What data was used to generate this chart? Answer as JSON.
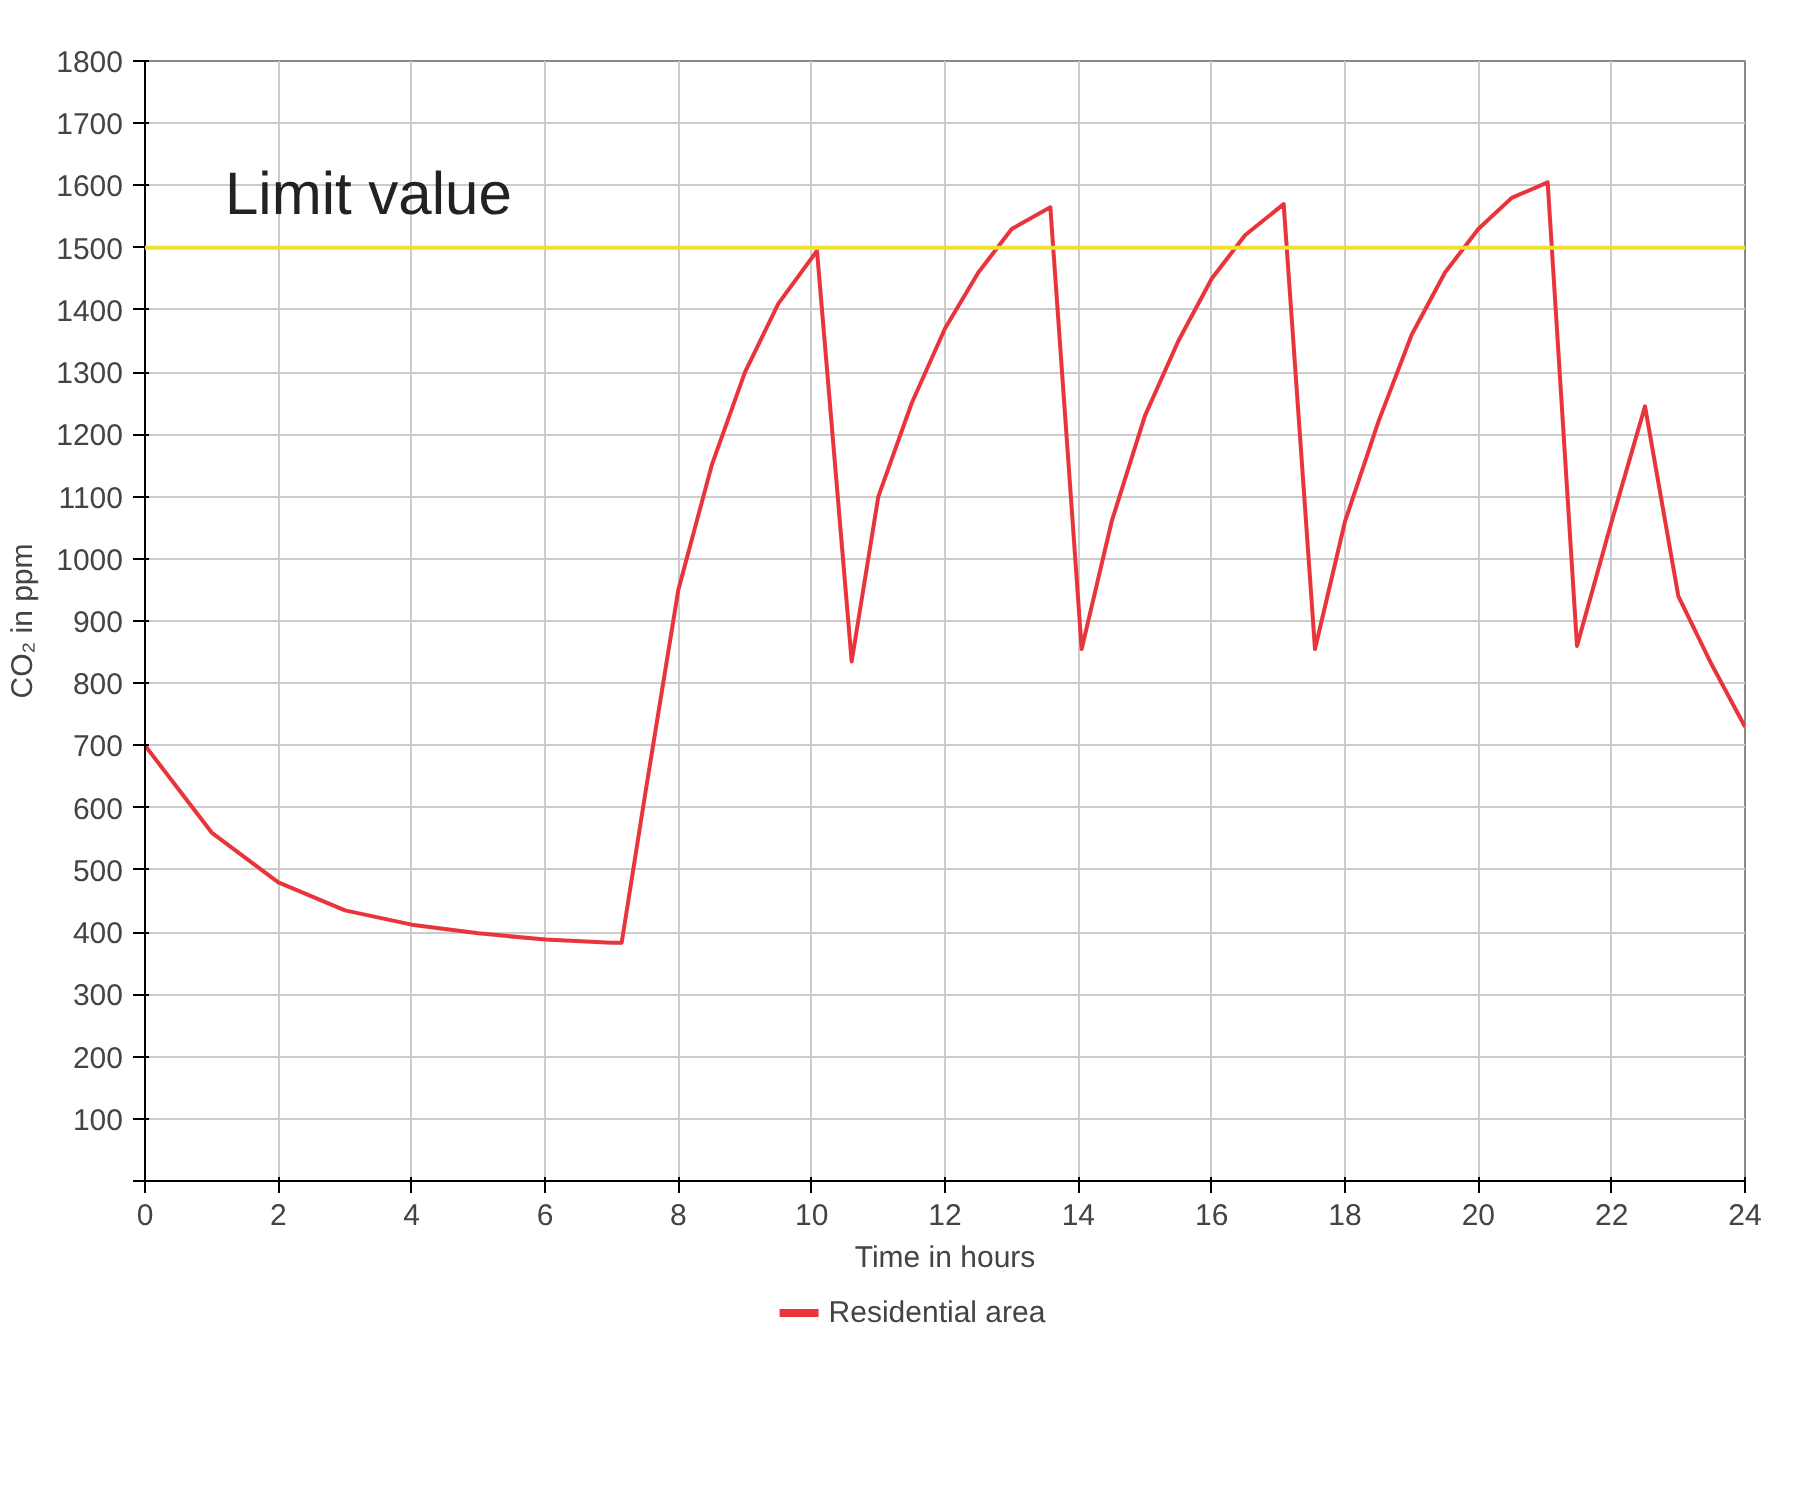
{
  "chart_data": {
    "type": "line",
    "xlabel": "Time in hours",
    "ylabel": "CO₂ in ppm",
    "x": [
      0,
      0.5,
      1,
      2,
      3,
      4,
      5,
      6,
      7,
      7.15,
      7.5,
      8,
      8.5,
      9,
      9.5,
      10.08,
      10.6,
      11,
      11.5,
      12,
      12.5,
      13,
      13.58,
      14.05,
      14.5,
      15,
      15.5,
      16,
      16.5,
      17.08,
      17.55,
      18,
      18.5,
      19,
      19.5,
      20,
      20.5,
      21.04,
      21.48,
      22,
      22.5,
      23,
      23.5,
      24
    ],
    "series": [
      {
        "name": "Residential area",
        "color": "#e8343a",
        "values": [
          700,
          630,
          560,
          480,
          435,
          412,
          398,
          388,
          383,
          383,
          620,
          950,
          1150,
          1300,
          1410,
          1495,
          835,
          1100,
          1250,
          1370,
          1460,
          1530,
          1565,
          855,
          1060,
          1230,
          1350,
          1450,
          1520,
          1570,
          855,
          1060,
          1220,
          1360,
          1460,
          1530,
          1580,
          1605,
          860,
          1060,
          1245,
          940,
          830,
          730
        ]
      }
    ],
    "xlim": [
      0,
      24
    ],
    "ylim": [
      0,
      1800
    ],
    "xticks": [
      0,
      2,
      4,
      6,
      8,
      10,
      12,
      14,
      16,
      18,
      20,
      22,
      24
    ],
    "yticks": [
      {
        "value": 0,
        "label": null
      },
      100,
      200,
      300,
      400,
      500,
      600,
      700,
      800,
      900,
      1000,
      1100,
      1200,
      1300,
      1400,
      1500,
      1600,
      1700,
      1800
    ],
    "ref_lines": [
      {
        "axis": "y",
        "value": 1500,
        "label": "Limit value",
        "color": "#f2e030"
      }
    ],
    "grid": true,
    "legend": "bottom",
    "marker": "none",
    "line_style": "solid"
  }
}
